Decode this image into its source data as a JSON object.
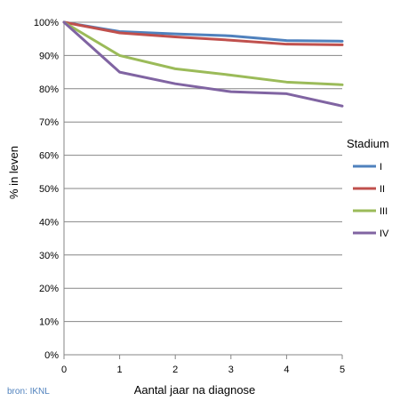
{
  "chart_data": {
    "type": "line",
    "x": [
      0,
      1,
      2,
      3,
      4,
      5
    ],
    "xlabel": "Aantal jaar na diagnose",
    "ylabel": "% in leven",
    "ylim": [
      0,
      100
    ],
    "y_ticks": [
      "0%",
      "10%",
      "20%",
      "30%",
      "40%",
      "50%",
      "60%",
      "70%",
      "80%",
      "90%",
      "100%"
    ],
    "x_ticks": [
      "0",
      "1",
      "2",
      "3",
      "4",
      "5"
    ],
    "grid": true,
    "legend_title": "Stadium",
    "legend_position": "right",
    "series": [
      {
        "name": "I",
        "color": "#4f81bd",
        "values": [
          100,
          97.2,
          96.5,
          95.9,
          94.5,
          94.3
        ]
      },
      {
        "name": "II",
        "color": "#c0504d",
        "values": [
          100,
          96.8,
          95.6,
          94.6,
          93.4,
          93.2
        ]
      },
      {
        "name": "III",
        "color": "#9bbb59",
        "values": [
          100,
          90.0,
          86.0,
          84.1,
          82.0,
          81.2
        ]
      },
      {
        "name": "IV",
        "color": "#8064a2",
        "values": [
          100,
          85.0,
          81.5,
          79.1,
          78.5,
          74.8
        ]
      }
    ]
  },
  "source": "bron: IKNL"
}
